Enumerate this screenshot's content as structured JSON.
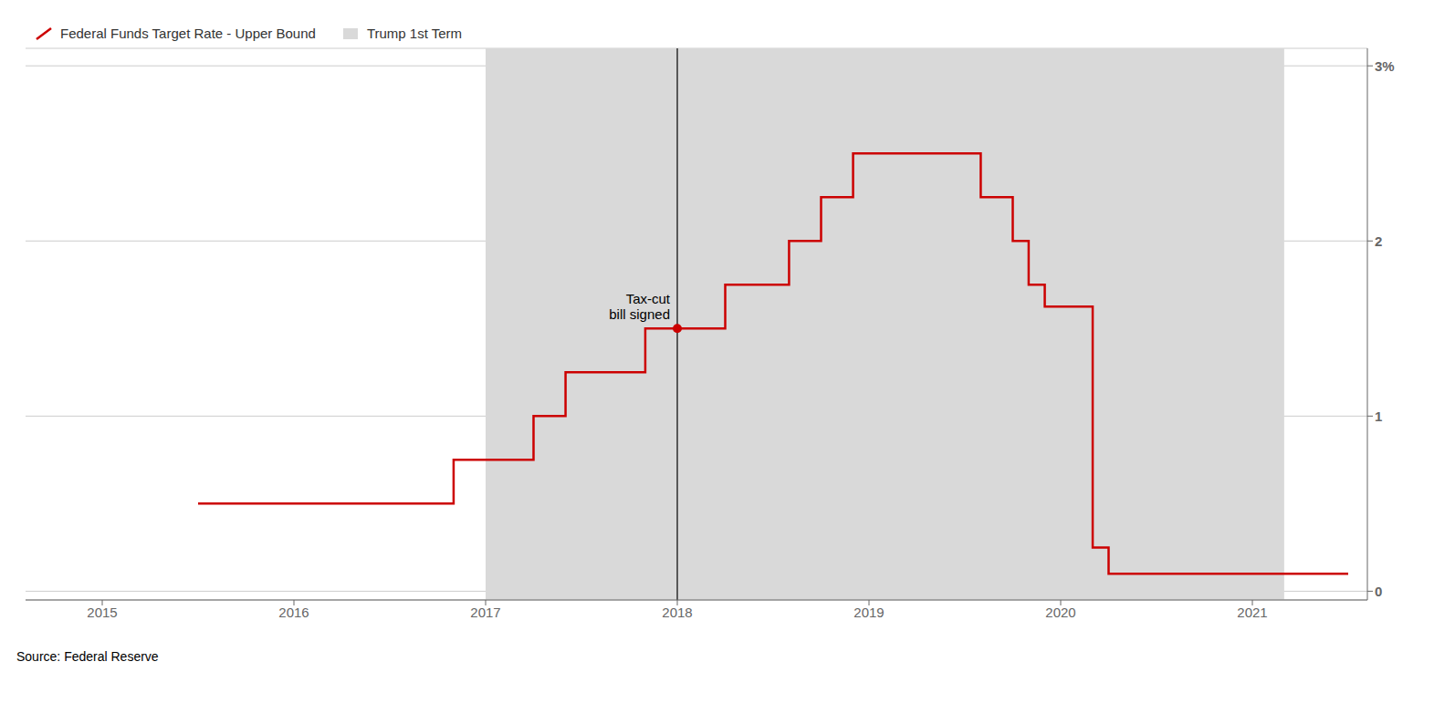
{
  "chart_data": {
    "type": "line",
    "x": [
      2015.5,
      2016.833,
      2016.833,
      2017.25,
      2017.25,
      2017.417,
      2017.417,
      2017.833,
      2017.833,
      2018.0,
      2018.25,
      2018.25,
      2018.583,
      2018.583,
      2018.75,
      2018.75,
      2018.917,
      2018.917,
      2019.583,
      2019.583,
      2019.75,
      2019.75,
      2019.833,
      2019.833,
      2019.917,
      2019.917,
      2020.167,
      2020.167,
      2020.25,
      2020.25,
      2021.5
    ],
    "series": [
      {
        "name": "Federal Funds Target Rate - Upper Bound",
        "color": "#cc0000",
        "values": [
          0.5,
          0.5,
          0.75,
          0.75,
          1.0,
          1.0,
          1.25,
          1.25,
          1.5,
          1.5,
          1.5,
          1.75,
          1.75,
          2.0,
          2.0,
          2.25,
          2.25,
          2.5,
          2.5,
          2.25,
          2.25,
          2.0,
          2.0,
          1.75,
          1.75,
          1.625,
          1.625,
          0.25,
          0.25,
          0.1,
          0.1
        ]
      }
    ],
    "shaded_regions": [
      {
        "start": 2017.0,
        "end": 2021.166,
        "label": "Trump 1st Term",
        "color": "#d9d9d9"
      }
    ],
    "annotations": [
      {
        "x": 2018.0,
        "y": 1.5,
        "text": "Tax-cut\nbill signed"
      }
    ],
    "source": "Source: Federal Reserve",
    "xlim": [
      2014.6,
      2021.6
    ],
    "xticks": [
      2015,
      2016,
      2017,
      2018,
      2019,
      2020,
      2021
    ],
    "ylim": [
      -0.05,
      3.1
    ],
    "yticks": [
      0,
      1,
      2,
      {
        "value": 3,
        "label": "3%"
      }
    ],
    "grid": true,
    "legend": "top"
  }
}
